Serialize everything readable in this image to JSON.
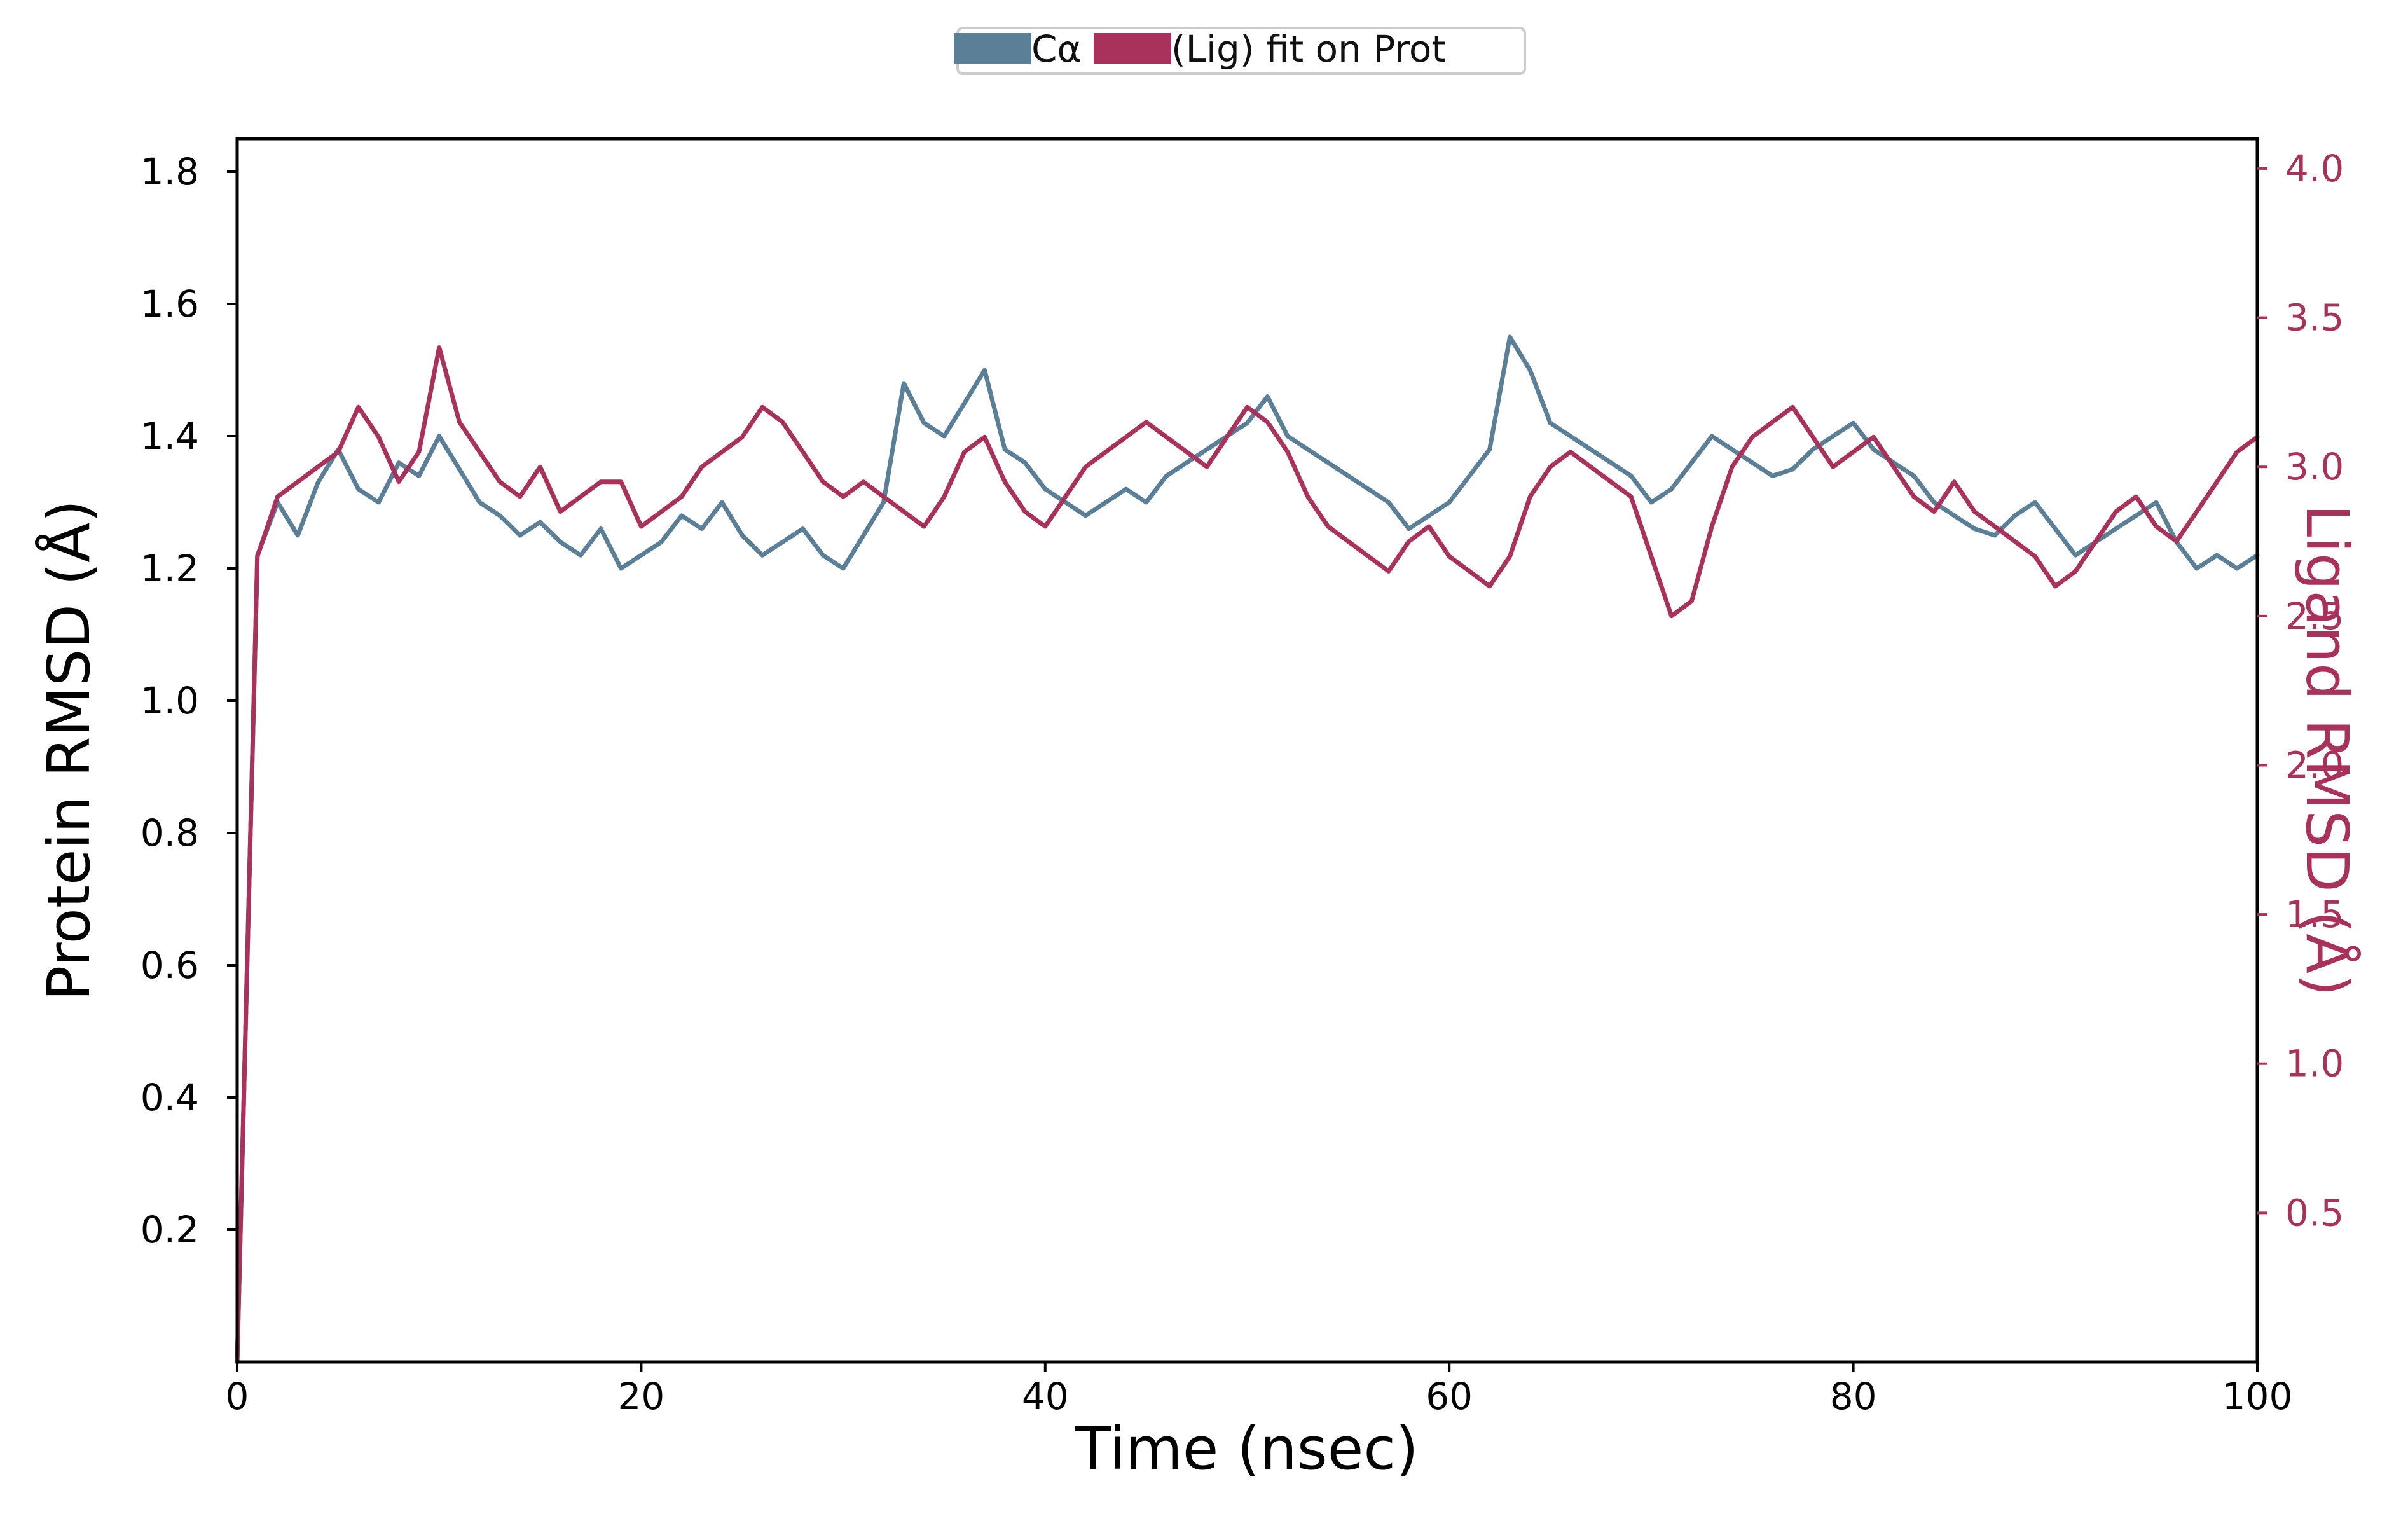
{
  "chart_data": {
    "type": "line",
    "xlabel": "Time (nsec)",
    "ylabel_left": "Protein RMSD (Å)",
    "ylabel_right": "Ligand RMSD (Å)",
    "xlim": [
      0,
      100
    ],
    "ylim_left": [
      0,
      1.85
    ],
    "ylim_right": [
      0,
      4.1
    ],
    "x_ticks": [
      "0",
      "20",
      "40",
      "60",
      "80",
      "100"
    ],
    "y_ticks_left": [
      "0.2",
      "0.4",
      "0.6",
      "0.8",
      "1.0",
      "1.2",
      "1.4",
      "1.6",
      "1.8"
    ],
    "y_ticks_right": [
      "0.5",
      "1.0",
      "1.5",
      "2.0",
      "2.5",
      "3.0",
      "3.5",
      "4.0"
    ],
    "grid": false,
    "legend": {
      "position": "top-center",
      "labels": [
        "Cα",
        "(Lig) fit on Prot"
      ]
    },
    "series": [
      {
        "name": "Cα",
        "axis": "left",
        "color": "#5a7f96",
        "x": [
          0,
          1,
          2,
          3,
          4,
          5,
          6,
          7,
          8,
          9,
          10,
          11,
          12,
          13,
          14,
          15,
          16,
          17,
          18,
          19,
          20,
          21,
          22,
          23,
          24,
          25,
          26,
          27,
          28,
          29,
          30,
          31,
          32,
          33,
          34,
          35,
          36,
          37,
          38,
          39,
          40,
          41,
          42,
          43,
          44,
          45,
          46,
          47,
          48,
          49,
          50,
          51,
          52,
          53,
          54,
          55,
          56,
          57,
          58,
          59,
          60,
          61,
          62,
          63,
          64,
          65,
          66,
          67,
          68,
          69,
          70,
          71,
          72,
          73,
          74,
          75,
          76,
          77,
          78,
          79,
          80,
          81,
          82,
          83,
          84,
          85,
          86,
          87,
          88,
          89,
          90,
          91,
          92,
          93,
          94,
          95,
          96,
          97,
          98,
          99,
          100
        ],
        "values": [
          0.0,
          1.22,
          1.3,
          1.25,
          1.33,
          1.38,
          1.32,
          1.3,
          1.36,
          1.34,
          1.4,
          1.35,
          1.3,
          1.28,
          1.25,
          1.27,
          1.24,
          1.22,
          1.26,
          1.2,
          1.22,
          1.24,
          1.28,
          1.26,
          1.3,
          1.25,
          1.22,
          1.24,
          1.26,
          1.22,
          1.2,
          1.25,
          1.3,
          1.48,
          1.42,
          1.4,
          1.45,
          1.5,
          1.38,
          1.36,
          1.32,
          1.3,
          1.28,
          1.3,
          1.32,
          1.3,
          1.34,
          1.36,
          1.38,
          1.4,
          1.42,
          1.46,
          1.4,
          1.38,
          1.36,
          1.34,
          1.32,
          1.3,
          1.26,
          1.28,
          1.3,
          1.34,
          1.38,
          1.55,
          1.5,
          1.42,
          1.4,
          1.38,
          1.36,
          1.34,
          1.3,
          1.32,
          1.36,
          1.4,
          1.38,
          1.36,
          1.34,
          1.35,
          1.38,
          1.4,
          1.42,
          1.38,
          1.36,
          1.34,
          1.3,
          1.28,
          1.26,
          1.25,
          1.28,
          1.3,
          1.26,
          1.22,
          1.24,
          1.26,
          1.28,
          1.3,
          1.24,
          1.2,
          1.22,
          1.2,
          1.22
        ]
      },
      {
        "name": "(Lig) fit on Prot",
        "axis": "right",
        "color": "#a8325c",
        "x": [
          0,
          1,
          2,
          3,
          4,
          5,
          6,
          7,
          8,
          9,
          10,
          11,
          12,
          13,
          14,
          15,
          16,
          17,
          18,
          19,
          20,
          21,
          22,
          23,
          24,
          25,
          26,
          27,
          28,
          29,
          30,
          31,
          32,
          33,
          34,
          35,
          36,
          37,
          38,
          39,
          40,
          41,
          42,
          43,
          44,
          45,
          46,
          47,
          48,
          49,
          50,
          51,
          52,
          53,
          54,
          55,
          56,
          57,
          58,
          59,
          60,
          61,
          62,
          63,
          64,
          65,
          66,
          67,
          68,
          69,
          70,
          71,
          72,
          73,
          74,
          75,
          76,
          77,
          78,
          79,
          80,
          81,
          82,
          83,
          84,
          85,
          86,
          87,
          88,
          89,
          90,
          91,
          92,
          93,
          94,
          95,
          96,
          97,
          98,
          99,
          100
        ],
        "values": [
          0.0,
          2.7,
          2.9,
          2.95,
          3.0,
          3.05,
          3.2,
          3.1,
          2.95,
          3.05,
          3.4,
          3.15,
          3.05,
          2.95,
          2.9,
          3.0,
          2.85,
          2.9,
          2.95,
          2.95,
          2.8,
          2.85,
          2.9,
          3.0,
          3.05,
          3.1,
          3.2,
          3.15,
          3.05,
          2.95,
          2.9,
          2.95,
          2.9,
          2.85,
          2.8,
          2.9,
          3.05,
          3.1,
          2.95,
          2.85,
          2.8,
          2.9,
          3.0,
          3.05,
          3.1,
          3.15,
          3.1,
          3.05,
          3.0,
          3.1,
          3.2,
          3.15,
          3.05,
          2.9,
          2.8,
          2.75,
          2.7,
          2.65,
          2.75,
          2.8,
          2.7,
          2.65,
          2.6,
          2.7,
          2.9,
          3.0,
          3.05,
          3.0,
          2.95,
          2.9,
          2.7,
          2.5,
          2.55,
          2.8,
          3.0,
          3.1,
          3.15,
          3.2,
          3.1,
          3.0,
          3.05,
          3.1,
          3.0,
          2.9,
          2.85,
          2.95,
          2.85,
          2.8,
          2.75,
          2.7,
          2.6,
          2.65,
          2.75,
          2.85,
          2.9,
          2.8,
          2.75,
          2.85,
          2.95,
          3.05,
          3.1
        ]
      }
    ]
  }
}
